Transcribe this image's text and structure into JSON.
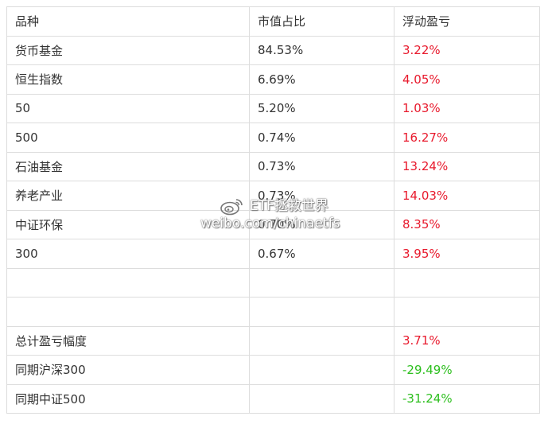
{
  "table": {
    "header": {
      "col1": "品种",
      "col2": "市值占比",
      "col3": "浮动盈亏"
    },
    "rows": [
      {
        "name": "货币基金",
        "share": "84.53%",
        "pnl": "3.22%"
      },
      {
        "name": "恒生指数",
        "share": "6.69%",
        "pnl": "4.05%"
      },
      {
        "name": "50",
        "share": "5.20%",
        "pnl": "1.03%"
      },
      {
        "name": "500",
        "share": "0.74%",
        "pnl": "16.27%"
      },
      {
        "name": "石油基金",
        "share": "0.73%",
        "pnl": "13.24%"
      },
      {
        "name": "养老产业",
        "share": "0.73%",
        "pnl": "14.03%"
      },
      {
        "name": "中证环保",
        "share": "0.70%",
        "pnl": "8.35%"
      },
      {
        "name": "300",
        "share": "0.67%",
        "pnl": "3.95%"
      }
    ],
    "summary": [
      {
        "label": "总计盈亏幅度",
        "value": "3.71%"
      },
      {
        "label": "同期沪深300",
        "value": "-29.49%"
      },
      {
        "label": "同期中证500",
        "value": "-31.24%"
      }
    ]
  },
  "colors": {
    "gain": "#e8192c",
    "loss": "#2dbf1e",
    "text": "#333333",
    "border": "#dddddd"
  },
  "watermark": {
    "line1": "ETF拯救世界",
    "line2": "weibo.com/chinaetfs",
    "logo_icon": "weibo-logo-icon"
  }
}
